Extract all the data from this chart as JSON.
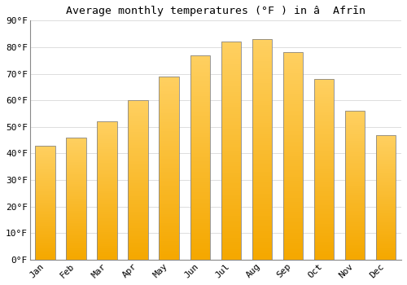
{
  "title": "Average monthly temperatures (°F ) in â  Afrīn",
  "months": [
    "Jan",
    "Feb",
    "Mar",
    "Apr",
    "May",
    "Jun",
    "Jul",
    "Aug",
    "Sep",
    "Oct",
    "Nov",
    "Dec"
  ],
  "values": [
    43,
    46,
    52,
    60,
    69,
    77,
    82,
    83,
    78,
    68,
    56,
    47
  ],
  "bar_color_top": "#FFD060",
  "bar_color_bottom": "#F5A800",
  "ylim": [
    0,
    90
  ],
  "yticks": [
    0,
    10,
    20,
    30,
    40,
    50,
    60,
    70,
    80,
    90
  ],
  "ytick_labels": [
    "0°F",
    "10°F",
    "20°F",
    "30°F",
    "40°F",
    "50°F",
    "60°F",
    "70°F",
    "80°F",
    "90°F"
  ],
  "bg_color": "#FFFFFF",
  "grid_color": "#DDDDDD",
  "title_fontsize": 9.5,
  "tick_fontsize": 8,
  "bar_edge_color": "#888888",
  "bar_width": 0.65
}
